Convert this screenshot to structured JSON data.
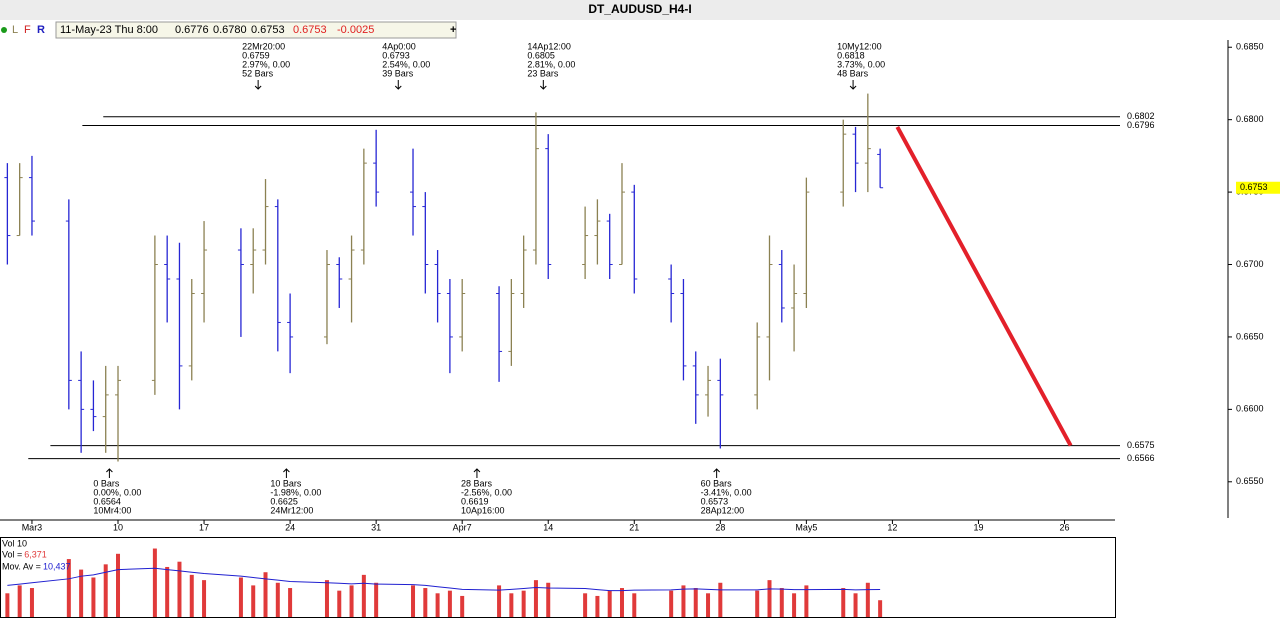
{
  "header": {
    "title": "DT_AUDUSD_H4-I"
  },
  "toolbar": {
    "buttons": [
      "L",
      "F",
      "R"
    ],
    "date": "11-May-23 Thu 8:00",
    "open": "0.6776",
    "high": "0.6780",
    "low": "0.6753",
    "close": "0.6753",
    "change": "-0.0025",
    "add": "+"
  },
  "chart_data": {
    "type": "ohlc",
    "x": [
      -2,
      -1,
      0,
      3,
      4,
      5,
      6,
      7,
      10,
      11,
      12,
      13,
      14,
      17,
      18,
      19,
      20,
      21,
      24,
      25,
      26,
      27,
      28,
      31,
      32,
      33,
      34,
      35,
      38,
      39,
      40,
      41,
      42,
      45,
      46,
      47,
      48,
      49,
      52,
      53,
      54,
      55,
      56,
      59,
      60,
      61,
      62,
      63,
      66,
      67,
      68,
      69
    ],
    "open": [
      0.676,
      0.672,
      0.676,
      0.673,
      0.662,
      0.66,
      0.6595,
      0.661,
      0.662,
      0.67,
      0.669,
      0.663,
      0.668,
      0.671,
      0.67,
      0.671,
      0.674,
      0.666,
      0.665,
      0.67,
      0.669,
      0.671,
      0.677,
      0.675,
      0.674,
      0.67,
      0.668,
      0.665,
      0.668,
      0.664,
      0.668,
      0.671,
      0.678,
      0.67,
      0.672,
      0.673,
      0.67,
      0.675,
      0.669,
      0.668,
      0.663,
      0.661,
      0.662,
      0.661,
      0.665,
      0.67,
      0.667,
      0.668,
      0.675,
      0.679,
      0.677,
      0.6776
    ],
    "high": [
      0.677,
      0.677,
      0.6775,
      0.6745,
      0.664,
      0.662,
      0.663,
      0.663,
      0.672,
      0.672,
      0.6715,
      0.669,
      0.673,
      0.6725,
      0.6725,
      0.6759,
      0.6745,
      0.668,
      0.671,
      0.6705,
      0.672,
      0.678,
      0.6793,
      0.678,
      0.675,
      0.671,
      0.669,
      0.669,
      0.6685,
      0.669,
      0.672,
      0.6805,
      0.679,
      0.674,
      0.6745,
      0.6735,
      0.677,
      0.6755,
      0.67,
      0.669,
      0.664,
      0.663,
      0.6635,
      0.666,
      0.672,
      0.671,
      0.67,
      0.676,
      0.68,
      0.6795,
      0.6818,
      0.678
    ],
    "low": [
      0.67,
      0.672,
      0.672,
      0.66,
      0.657,
      0.6585,
      0.657,
      0.6564,
      0.661,
      0.666,
      0.66,
      0.662,
      0.666,
      0.665,
      0.668,
      0.67,
      0.664,
      0.6625,
      0.6645,
      0.667,
      0.666,
      0.67,
      0.674,
      0.672,
      0.668,
      0.666,
      0.6625,
      0.664,
      0.6619,
      0.663,
      0.667,
      0.67,
      0.669,
      0.669,
      0.67,
      0.669,
      0.67,
      0.668,
      0.666,
      0.662,
      0.659,
      0.6595,
      0.6573,
      0.66,
      0.662,
      0.666,
      0.664,
      0.667,
      0.674,
      0.675,
      0.675,
      0.6753
    ],
    "close": [
      0.672,
      0.676,
      0.673,
      0.662,
      0.66,
      0.6595,
      0.661,
      0.662,
      0.67,
      0.669,
      0.663,
      0.668,
      0.671,
      0.67,
      0.671,
      0.674,
      0.666,
      0.665,
      0.67,
      0.669,
      0.671,
      0.677,
      0.675,
      0.674,
      0.67,
      0.668,
      0.665,
      0.668,
      0.664,
      0.668,
      0.671,
      0.678,
      0.67,
      0.672,
      0.673,
      0.67,
      0.675,
      0.669,
      0.668,
      0.663,
      0.661,
      0.662,
      0.661,
      0.665,
      0.67,
      0.667,
      0.668,
      0.675,
      0.679,
      0.677,
      0.678,
      0.6753
    ],
    "up_color": "#8b8152",
    "down_color": "#2626d4",
    "xlim": [
      -2.6,
      97.3
    ],
    "xticks": [
      {
        "value": 0,
        "label": "Mar3"
      },
      {
        "value": 7,
        "label": "10"
      },
      {
        "value": 14,
        "label": "17"
      },
      {
        "value": 21,
        "label": "24"
      },
      {
        "value": 28,
        "label": "31"
      },
      {
        "value": 35,
        "label": "Apr7"
      },
      {
        "value": 42,
        "label": "14"
      },
      {
        "value": 49,
        "label": "21"
      },
      {
        "value": 56,
        "label": "28"
      },
      {
        "value": 63,
        "label": "May5"
      },
      {
        "value": 70,
        "label": "12"
      },
      {
        "value": 77,
        "label": "19"
      },
      {
        "value": 84,
        "label": "26"
      }
    ],
    "ylim": [
      0.6525,
      0.6855
    ],
    "yticks": [
      {
        "value": 0.685,
        "label": "0.6850"
      },
      {
        "value": 0.68,
        "label": "0.6800"
      },
      {
        "value": 0.675,
        "label": "0.6750"
      },
      {
        "value": 0.67,
        "label": "0.6700"
      },
      {
        "value": 0.665,
        "label": "0.6650"
      },
      {
        "value": 0.66,
        "label": "0.6600"
      },
      {
        "value": 0.655,
        "label": "0.6550"
      }
    ],
    "levels": [
      {
        "value": 0.6802,
        "from": 5.8
      },
      {
        "value": 0.6796,
        "from": 4.1
      },
      {
        "value": 0.6575,
        "from": 1.5
      },
      {
        "value": 0.6566,
        "from": -0.3
      }
    ],
    "trendline": {
      "x": [
        70.4,
        84.5
      ],
      "y": [
        0.6795,
        0.6575
      ],
      "color": "#e3202a"
    },
    "last_price": 0.6753,
    "annotations": {
      "top": [
        {
          "x": 18.4,
          "lines": [
            "22Mr20:00",
            "0.6759",
            "2.97%, 0.00",
            "52 Bars"
          ]
        },
        {
          "x": 29.8,
          "lines": [
            "4Ap0:00",
            "0.6793",
            "2.54%, 0.00",
            "39 Bars"
          ]
        },
        {
          "x": 41.6,
          "lines": [
            "14Ap12:00",
            "0.6805",
            "2.81%, 0.00",
            "23 Bars"
          ]
        },
        {
          "x": 66.8,
          "lines": [
            "10My12:00",
            "0.6818",
            "3.73%, 0.00",
            "48 Bars"
          ]
        }
      ],
      "bottom": [
        {
          "x": 6.3,
          "lines": [
            "0 Bars",
            "0.00%, 0.00",
            "0.6564",
            "10Mr4:00"
          ]
        },
        {
          "x": 20.7,
          "lines": [
            "10 Bars",
            "-1.98%, 0.00",
            "0.6625",
            "24Mr12:00"
          ]
        },
        {
          "x": 36.2,
          "lines": [
            "28 Bars",
            "-2.56%, 0.00",
            "0.6619",
            "10Ap16:00"
          ]
        },
        {
          "x": 55.7,
          "lines": [
            "60 Bars",
            "-3.41%, 0.00",
            "0.6573",
            "28Ap12:00"
          ]
        }
      ]
    },
    "volume": {
      "title": "Vol 10",
      "name": "Vol =",
      "ma_name": "Mov. Av =",
      "values": [
        9000,
        12000,
        11000,
        22000,
        18000,
        15000,
        20000,
        24000,
        26000,
        19000,
        21000,
        16000,
        14000,
        15000,
        12000,
        17000,
        13000,
        11000,
        14000,
        10000,
        12000,
        16000,
        13000,
        12000,
        11000,
        9000,
        10000,
        8000,
        12000,
        9000,
        10000,
        14000,
        13000,
        9000,
        8000,
        10000,
        11000,
        9000,
        10000,
        12000,
        11000,
        9000,
        13000,
        10000,
        14000,
        11000,
        9000,
        12000,
        11000,
        9000,
        13000,
        6371
      ],
      "ma": [
        12000,
        12500,
        13000,
        14500,
        15500,
        16000,
        17000,
        18000,
        18500,
        18000,
        17500,
        17000,
        16500,
        15500,
        15000,
        14500,
        14000,
        13500,
        13000,
        12800,
        12600,
        12800,
        12500,
        12300,
        12000,
        11500,
        11000,
        10500,
        10200,
        10500,
        10800,
        11200,
        11000,
        10800,
        10400,
        10000,
        10000,
        10200,
        10300,
        10600,
        10700,
        10500,
        10300,
        10300,
        10700,
        10600,
        10400,
        10400,
        10500,
        10300,
        10400,
        10437
      ],
      "value_label": "6,371",
      "ma_label": "10,437",
      "ylim": [
        0,
        30000
      ],
      "color": "#e03a3a",
      "ma_color": "#2020d0"
    }
  }
}
